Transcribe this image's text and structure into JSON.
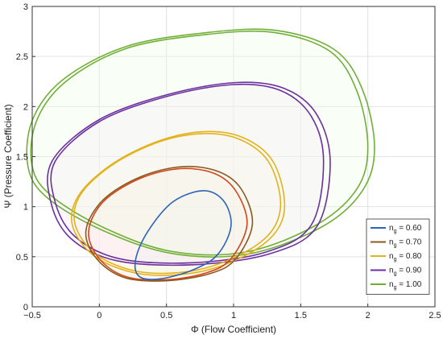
{
  "chart_data": {
    "type": "line",
    "xlabel": "Φ (Flow Coefficient)",
    "ylabel": "Ψ (Pressure Coefficient)",
    "xlim": [
      -0.5,
      2.5
    ],
    "ylim": [
      0,
      3
    ],
    "x_ticks": [
      "−0.5",
      "0",
      "0.5",
      "1",
      "1.5",
      "2",
      "2.5"
    ],
    "y_ticks": [
      "0",
      "0.5",
      "1",
      "1.5",
      "2",
      "2.5",
      "3"
    ],
    "grid": true,
    "legend_position": "bottom-right",
    "series": [
      {
        "name": "n_g = 0.60",
        "legend_label": {
          "base": "n",
          "sub": "g",
          "rest": " = 0.60"
        },
        "color": "#2e63b8",
        "loops": [
          {
            "x": [
              0.98,
              0.93,
              0.78,
              0.55,
              0.36,
              0.27,
              0.3,
              0.46,
              0.7,
              0.88,
              0.98
            ],
            "y": [
              0.8,
              1.05,
              1.16,
              1.05,
              0.75,
              0.47,
              0.3,
              0.28,
              0.37,
              0.52,
              0.8
            ]
          }
        ]
      },
      {
        "name": "n_g = 0.70",
        "legend_label": {
          "base": "n",
          "sub": "g",
          "rest": " = 0.70"
        },
        "color": "#8a5a1e",
        "accent_color": "#d2461c",
        "loops": [
          {
            "x": [
              1.1,
              1.02,
              0.86,
              0.6,
              0.3,
              0.03,
              -0.08,
              0.0,
              0.2,
              0.5,
              0.8,
              0.98,
              1.1
            ],
            "y": [
              0.82,
              1.15,
              1.33,
              1.38,
              1.28,
              1.05,
              0.75,
              0.48,
              0.3,
              0.27,
              0.34,
              0.48,
              0.82
            ]
          },
          {
            "x": [
              1.14,
              1.06,
              0.89,
              0.62,
              0.31,
              0.03,
              -0.1,
              -0.02,
              0.19,
              0.5,
              0.82,
              1.01,
              1.14
            ],
            "y": [
              0.82,
              1.17,
              1.35,
              1.4,
              1.3,
              1.07,
              0.76,
              0.48,
              0.29,
              0.26,
              0.33,
              0.47,
              0.82
            ]
          }
        ]
      },
      {
        "name": "n_g = 0.80",
        "legend_label": {
          "base": "n",
          "sub": "g",
          "rest": " = 0.80"
        },
        "color": "#e3b21b",
        "loops": [
          {
            "x": [
              1.35,
              1.26,
              1.05,
              0.78,
              0.45,
              0.1,
              -0.14,
              -0.18,
              -0.02,
              0.3,
              0.7,
              1.05,
              1.28,
              1.35
            ],
            "y": [
              1.05,
              1.45,
              1.67,
              1.73,
              1.65,
              1.42,
              1.12,
              0.82,
              0.52,
              0.35,
              0.36,
              0.52,
              0.75,
              1.05
            ]
          },
          {
            "x": [
              1.38,
              1.29,
              1.07,
              0.79,
              0.45,
              0.1,
              -0.15,
              -0.2,
              -0.03,
              0.3,
              0.71,
              1.07,
              1.31,
              1.38
            ],
            "y": [
              1.04,
              1.46,
              1.69,
              1.75,
              1.66,
              1.43,
              1.12,
              0.81,
              0.5,
              0.33,
              0.34,
              0.5,
              0.74,
              1.04
            ]
          }
        ]
      },
      {
        "name": "n_g = 0.90",
        "legend_label": {
          "base": "n",
          "sub": "g",
          "rest": " = 0.90"
        },
        "color": "#6b2fa0",
        "loops": [
          {
            "x": [
              1.67,
              1.58,
              1.35,
              1.0,
              0.5,
              0.0,
              -0.33,
              -0.33,
              -0.18,
              0.15,
              0.7,
              1.25,
              1.58,
              1.67
            ],
            "y": [
              1.45,
              1.9,
              2.16,
              2.22,
              2.1,
              1.85,
              1.45,
              1.05,
              0.7,
              0.48,
              0.44,
              0.55,
              0.82,
              1.45
            ]
          },
          {
            "x": [
              1.72,
              1.62,
              1.38,
              1.02,
              0.51,
              0.0,
              -0.35,
              -0.36,
              -0.21,
              0.13,
              0.7,
              1.27,
              1.62,
              1.72
            ],
            "y": [
              1.44,
              1.92,
              2.18,
              2.24,
              2.12,
              1.87,
              1.46,
              1.04,
              0.68,
              0.46,
              0.42,
              0.53,
              0.8,
              1.44
            ]
          }
        ]
      },
      {
        "name": "n_g = 1.00",
        "legend_label": {
          "base": "n",
          "sub": "g",
          "rest": " = 1.00"
        },
        "color": "#6fb034",
        "loops": [
          {
            "x": [
              2.0,
              1.92,
              1.72,
              1.3,
              0.8,
              0.2,
              -0.25,
              -0.47,
              -0.5,
              -0.35,
              0.05,
              0.55,
              1.1,
              1.62,
              1.92,
              2.0
            ],
            "y": [
              1.6,
              2.15,
              2.55,
              2.74,
              2.72,
              2.58,
              2.25,
              1.85,
              1.4,
              1.1,
              0.78,
              0.55,
              0.55,
              0.82,
              1.18,
              1.6
            ]
          },
          {
            "x": [
              2.05,
              1.96,
              1.75,
              1.32,
              0.81,
              0.2,
              -0.27,
              -0.5,
              -0.53,
              -0.38,
              0.03,
              0.55,
              1.12,
              1.66,
              1.96,
              2.05
            ],
            "y": [
              1.59,
              2.17,
              2.57,
              2.76,
              2.74,
              2.6,
              2.27,
              1.86,
              1.39,
              1.08,
              0.76,
              0.53,
              0.53,
              0.8,
              1.16,
              1.59
            ]
          }
        ]
      }
    ]
  }
}
